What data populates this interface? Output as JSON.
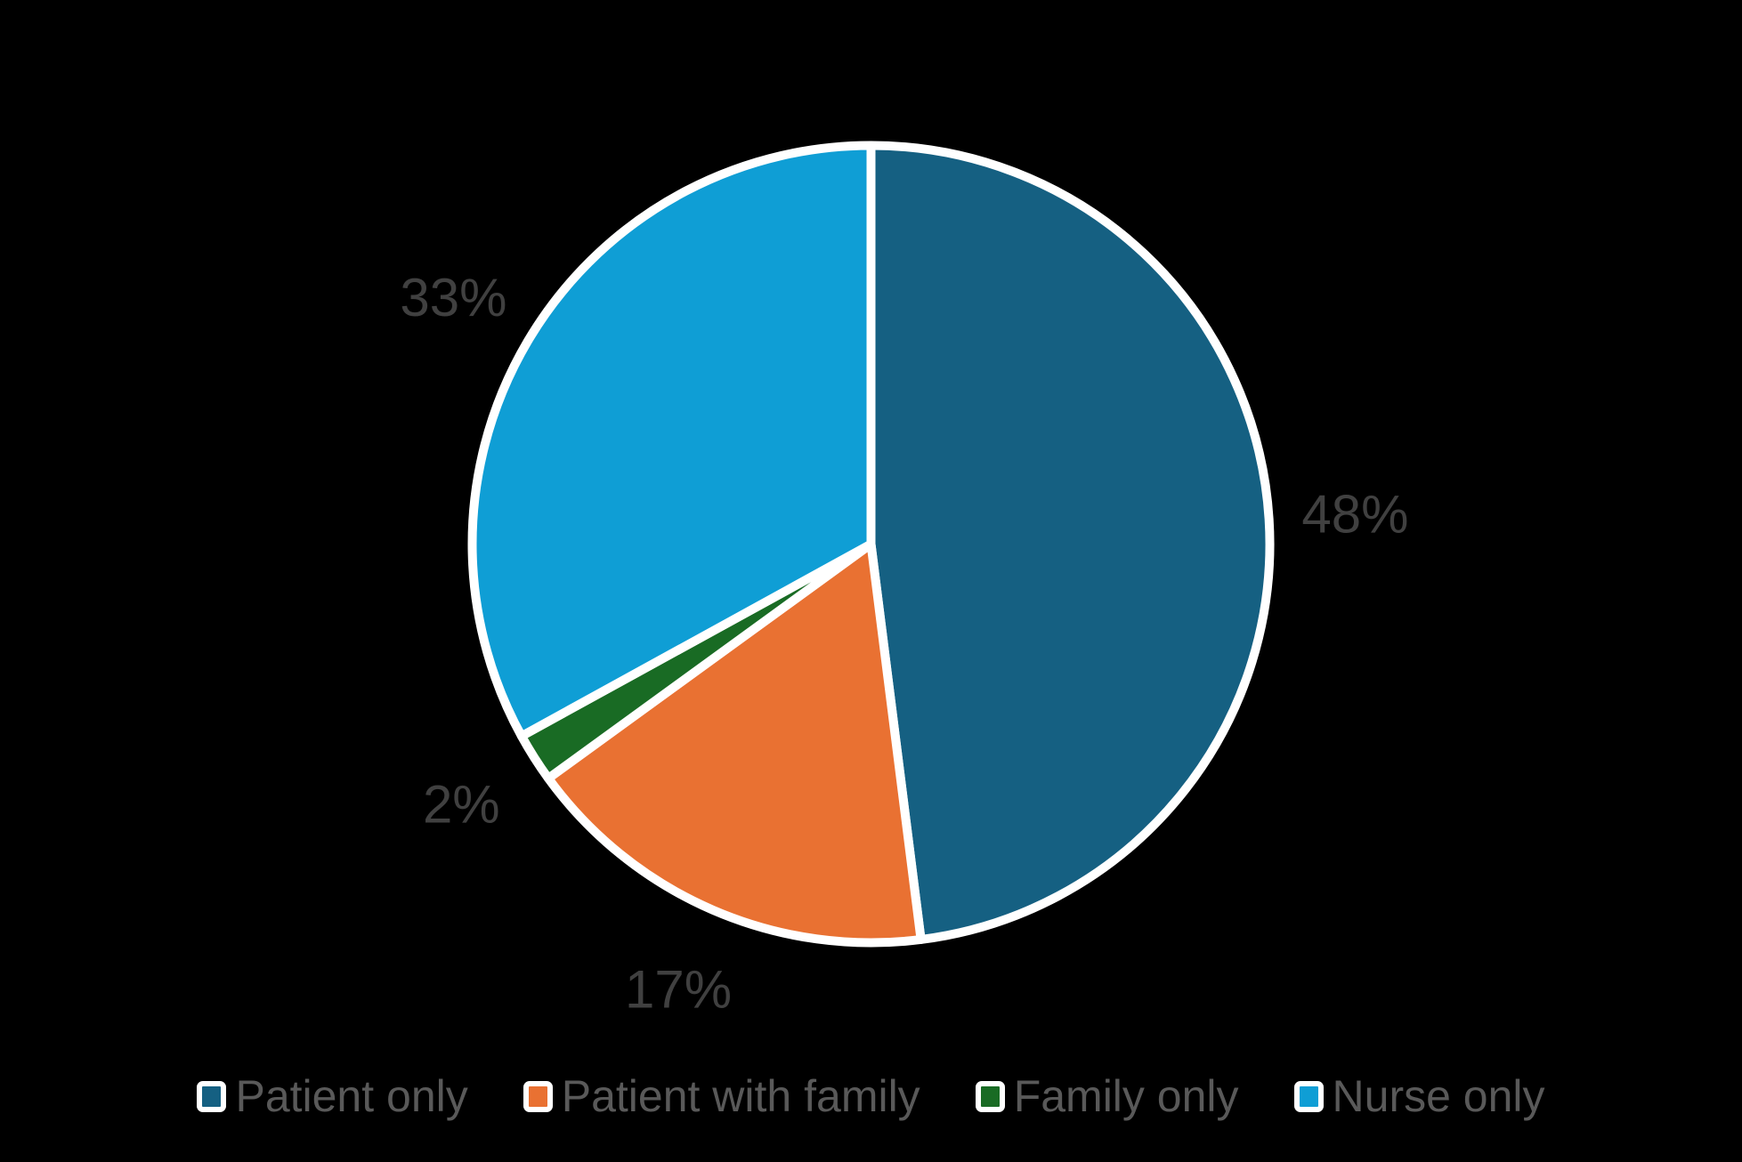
{
  "page": {
    "background_color": "#000000"
  },
  "chart_data": {
    "type": "pie",
    "title": "",
    "start_angle_deg": 0,
    "direction": "clockwise",
    "slice_border_color": "#FFFFFF",
    "data_label_color": "#404040",
    "slices": [
      {
        "label": "Patient only",
        "value": 48,
        "data_label": "48%",
        "color": "#156082"
      },
      {
        "label": "Patient with family",
        "value": 17,
        "data_label": "17%",
        "color": "#E97132"
      },
      {
        "label": "Family only",
        "value": 2,
        "data_label": "2%",
        "color": "#196B24"
      },
      {
        "label": "Nurse only",
        "value": 33,
        "data_label": "33%",
        "color": "#0F9ED5"
      }
    ],
    "legend": {
      "position": "bottom",
      "text_color": "#595959",
      "marker_border_color": "#FFFFFF",
      "entries": [
        "Patient only",
        "Patient with family",
        "Family only",
        "Nurse only"
      ]
    }
  }
}
